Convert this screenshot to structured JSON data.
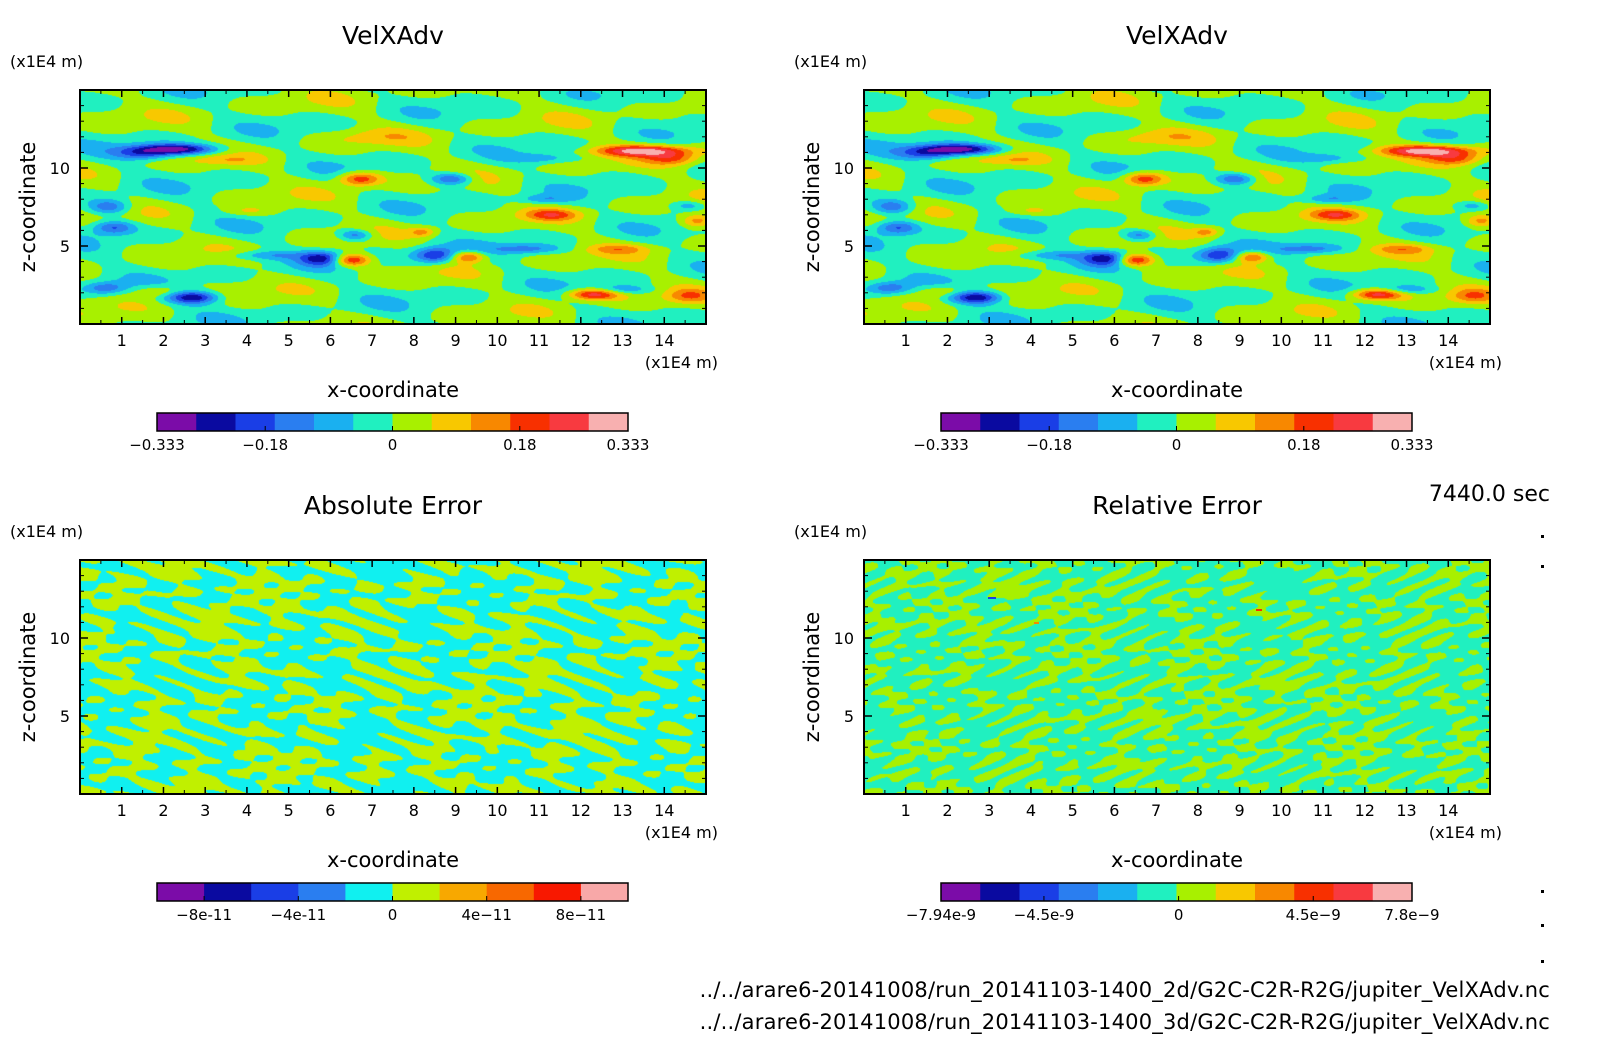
{
  "timestamp": "7440.0 sec",
  "footer": {
    "line1": "../../arare6-20141008/run_20141103-1400_2d/G2C-C2R-R2G/jupiter_VelXAdv.nc",
    "line2": "../../arare6-20141008/run_20141103-1400_3d/G2C-C2R-R2G/jupiter_VelXAdv.nc"
  },
  "chart_data": [
    {
      "type": "heatmap",
      "title": "VelXAdv",
      "xlabel": "x-coordinate",
      "ylabel": "z-coordinate",
      "x_unit": "(x1E4 m)",
      "y_unit": "(x1E4 m)",
      "xlim": [
        0,
        15
      ],
      "ylim": [
        0,
        15
      ],
      "xticks": [
        "1",
        "2",
        "3",
        "4",
        "5",
        "6",
        "7",
        "8",
        "9",
        "10",
        "11",
        "12",
        "13",
        "14"
      ],
      "yticks": [
        "5",
        "10"
      ],
      "colorbar": {
        "min": -0.333,
        "max": 0.333,
        "tick_labels": [
          "-0.333",
          "-0.18",
          "0",
          "0.18",
          "0.333"
        ],
        "colors": [
          "#7b0ca8",
          "#0a0aa0",
          "#1a3ee6",
          "#2a7ef0",
          "#1ab0f0",
          "#20f0c0",
          "#a8f000",
          "#f8c800",
          "#f88800",
          "#f83000",
          "#f83a40",
          "#f8b0b0"
        ]
      }
    },
    {
      "type": "heatmap",
      "title": "VelXAdv",
      "xlabel": "x-coordinate",
      "ylabel": "z-coordinate",
      "x_unit": "(x1E4 m)",
      "y_unit": "(x1E4 m)",
      "xlim": [
        0,
        15
      ],
      "ylim": [
        0,
        15
      ],
      "xticks": [
        "1",
        "2",
        "3",
        "4",
        "5",
        "6",
        "7",
        "8",
        "9",
        "10",
        "11",
        "12",
        "13",
        "14"
      ],
      "yticks": [
        "5",
        "10"
      ],
      "colorbar": {
        "min": -0.333,
        "max": 0.333,
        "tick_labels": [
          "-0.333",
          "-0.18",
          "0",
          "0.18",
          "0.333"
        ],
        "colors": [
          "#7b0ca8",
          "#0a0aa0",
          "#1a3ee6",
          "#2a7ef0",
          "#1ab0f0",
          "#20f0c0",
          "#a8f000",
          "#f8c800",
          "#f88800",
          "#f83000",
          "#f83a40",
          "#f8b0b0"
        ]
      }
    },
    {
      "type": "heatmap",
      "title": "Absolute Error",
      "xlabel": "x-coordinate",
      "ylabel": "z-coordinate",
      "x_unit": "(x1E4 m)",
      "y_unit": "(x1E4 m)",
      "xlim": [
        0,
        15
      ],
      "ylim": [
        0,
        15
      ],
      "xticks": [
        "1",
        "2",
        "3",
        "4",
        "5",
        "6",
        "7",
        "8",
        "9",
        "10",
        "11",
        "12",
        "13",
        "14"
      ],
      "yticks": [
        "5",
        "10"
      ],
      "colorbar": {
        "min": -1e-10,
        "max": 1e-10,
        "tick_labels": [
          "-8e-11",
          "-4e-11",
          "0",
          "4e-11",
          "8e-11"
        ],
        "colors": [
          "#7b0ca8",
          "#0a0aa0",
          "#1a3ee6",
          "#2a7ef0",
          "#10f0f0",
          "#c0f000",
          "#f8a800",
          "#f86800",
          "#f81800",
          "#f8a8a8"
        ]
      }
    },
    {
      "type": "heatmap",
      "title": "Relative Error",
      "xlabel": "x-coordinate",
      "ylabel": "z-coordinate",
      "x_unit": "(x1E4 m)",
      "y_unit": "(x1E4 m)",
      "xlim": [
        0,
        15
      ],
      "ylim": [
        0,
        15
      ],
      "xticks": [
        "1",
        "2",
        "3",
        "4",
        "5",
        "6",
        "7",
        "8",
        "9",
        "10",
        "11",
        "12",
        "13",
        "14"
      ],
      "yticks": [
        "5",
        "10"
      ],
      "colorbar": {
        "min": -7.94e-09,
        "max": 7.8e-09,
        "tick_labels": [
          "-7.94e-9",
          "-4.5e-9",
          "0",
          "4.5e-9",
          "7.8e-9"
        ],
        "colors": [
          "#7b0ca8",
          "#0a0aa0",
          "#1a3ee6",
          "#2a7ef0",
          "#1ab0f0",
          "#20f0c0",
          "#a8f000",
          "#f8c800",
          "#f88800",
          "#f83000",
          "#f83a40",
          "#f8b0b0"
        ]
      }
    }
  ]
}
